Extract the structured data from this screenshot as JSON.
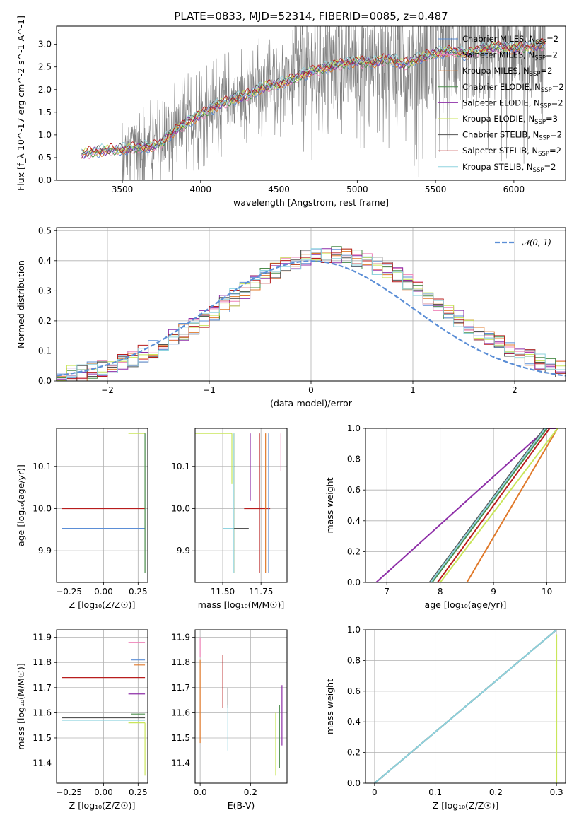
{
  "figure": {
    "title": "PLATE=0833, MJD=52314, FIBERID=0085, z=0.487"
  },
  "models": [
    {
      "name": "Chabrier MILES",
      "nssp": "2",
      "color": "#5b8ed6"
    },
    {
      "name": "Salpeter MILES",
      "nssp": "2",
      "color": "#ee82b8"
    },
    {
      "name": "Kroupa MILES",
      "nssp": "2",
      "color": "#e0792a"
    },
    {
      "name": "Chabrier ELODIE",
      "nssp": "2",
      "color": "#4a8c4a"
    },
    {
      "name": "Salpeter ELODIE",
      "nssp": "2",
      "color": "#8e2fa8"
    },
    {
      "name": "Kroupa ELODIE",
      "nssp": "3",
      "color": "#c9e65a"
    },
    {
      "name": "Chabrier STELIB",
      "nssp": "2",
      "color": "#555555"
    },
    {
      "name": "Salpeter STELIB",
      "nssp": "2",
      "color": "#b81d1d"
    },
    {
      "name": "Kroupa STELIB",
      "nssp": "2",
      "color": "#8fd3df"
    }
  ],
  "legend_nssp_prefix": "N",
  "legend_nssp_sub": "SSP",
  "chart_data": [
    {
      "id": "spectrum",
      "type": "line",
      "title": "",
      "xlabel": "wavelength [Angstrom, rest frame]",
      "ylabel": "Flux [f_λ 10^-17 erg cm^-2 s^-1 A^-1]",
      "xlim": [
        3080,
        6330
      ],
      "ylim": [
        0,
        3.4
      ],
      "xticks": [
        3500,
        4000,
        4500,
        5000,
        5500,
        6000
      ],
      "yticks": [
        0.0,
        0.5,
        1.0,
        1.5,
        2.0,
        2.5,
        3.0
      ],
      "grid": false,
      "legend_position": "upper right",
      "data_color": "#808080",
      "data_range": [
        3240,
        6200
      ],
      "model_continuum": {
        "x": [
          3240,
          3300,
          3400,
          3500,
          3600,
          3700,
          3760,
          3800,
          3900,
          4000,
          4100,
          4200,
          4300,
          4400,
          4500,
          4600,
          4700,
          4800,
          4900,
          5000,
          5100,
          5200,
          5300,
          5400,
          5500,
          5600,
          5700,
          5800,
          5900,
          6000,
          6100,
          6200
        ],
        "y": [
          0.58,
          0.62,
          0.66,
          0.68,
          0.72,
          0.75,
          0.85,
          1.0,
          1.25,
          1.45,
          1.65,
          1.78,
          1.88,
          2.05,
          2.12,
          2.25,
          2.4,
          2.48,
          2.58,
          2.62,
          2.6,
          2.68,
          2.55,
          2.7,
          2.8,
          2.85,
          2.78,
          2.9,
          2.95,
          2.9,
          2.95,
          3.0
        ]
      }
    },
    {
      "id": "residuals",
      "type": "histogram",
      "xlabel": "(data-model)/error",
      "ylabel": "Normed distribution",
      "xlim": [
        -2.5,
        2.5
      ],
      "ylim": [
        0,
        0.51
      ],
      "xticks": [
        -2,
        -1,
        0,
        1,
        2
      ],
      "yticks": [
        0.0,
        0.1,
        0.2,
        0.3,
        0.4,
        0.5
      ],
      "grid": true,
      "legend_position": "upper right",
      "reference_curve": {
        "name": "𝒩(0, 1)",
        "type": "normal",
        "mean": 0,
        "sigma": 1,
        "color": "#5b8ed6"
      },
      "bin_width": 0.1
    },
    {
      "id": "age-vs-Z",
      "type": "scatter",
      "xlabel": "Z [log₁₀(Z/Z☉)]",
      "ylabel": "age  [log₁₀(age/yr)]",
      "xlim": [
        -0.34,
        0.32
      ],
      "ylim": [
        9.825,
        10.19
      ],
      "xticks": [
        -0.25,
        0.0,
        0.25
      ],
      "xtick_labels": [
        "−0.25",
        "0.00",
        "0.25"
      ],
      "yticks": [
        9.9,
        10.0,
        10.1
      ],
      "grid": true,
      "points": [
        {
          "model": 7,
          "x": 0.3,
          "y": 10.0,
          "xerr": [
            0.6,
            0.0
          ]
        },
        {
          "model": 8,
          "x": 0.3,
          "y": 9.953,
          "xerr": [
            0.6,
            0.0
          ]
        },
        {
          "model": 0,
          "x": 0.3,
          "y": 9.953,
          "xerr": [
            0.6,
            0.0
          ]
        },
        {
          "model": 5,
          "x": 0.3,
          "y": 10.178,
          "xerr": [
            0.12,
            0.0
          ]
        },
        {
          "model": 3,
          "x": 0.3,
          "y": 10.178,
          "yerr": [
            0.33,
            0.0
          ]
        }
      ]
    },
    {
      "id": "age-vs-mass",
      "type": "scatter",
      "xlabel": "mass [log₁₀(M/M☉)]",
      "ylabel": "",
      "xlim": [
        11.32,
        11.92
      ],
      "ylim": [
        9.825,
        10.19
      ],
      "xticks": [
        11.5,
        11.75
      ],
      "xtick_labels": [
        "11.50",
        "11.75"
      ],
      "yticks": [
        9.9,
        10.0,
        10.1
      ],
      "grid": true,
      "points": [
        {
          "model": 8,
          "x": 11.57,
          "y": 9.953,
          "xerr": [
            0.07,
            0.07
          ]
        },
        {
          "model": 6,
          "x": 11.62,
          "y": 9.953,
          "xerr": [
            0.05,
            0.05
          ]
        },
        {
          "model": 7,
          "x": 11.74,
          "y": 10.0,
          "xerr": [
            0.1,
            0.07
          ]
        },
        {
          "model": 0,
          "x": 11.8,
          "y": 10.178,
          "yerr": [
            0.33,
            0.0
          ]
        },
        {
          "model": 2,
          "x": 11.78,
          "y": 10.178,
          "yerr": [
            0.33,
            0.0
          ]
        },
        {
          "model": 7,
          "x": 11.74,
          "y": 10.178,
          "yerr": [
            0.33,
            0.0
          ]
        },
        {
          "model": 3,
          "x": 11.58,
          "y": 10.178,
          "yerr": [
            0.33,
            0.0
          ]
        },
        {
          "model": 8,
          "x": 11.57,
          "y": 10.178,
          "yerr": [
            0.33,
            0.0
          ]
        },
        {
          "model": 5,
          "x": 11.56,
          "y": 10.178,
          "xerr": [
            0.24,
            0.0
          ],
          "yerr": [
            0.12,
            0.0
          ]
        },
        {
          "model": 4,
          "x": 11.68,
          "y": 10.178,
          "yerr": [
            0.16,
            0.0
          ]
        },
        {
          "model": 1,
          "x": 11.88,
          "y": 10.178,
          "yerr": [
            0.09,
            0.0
          ]
        }
      ]
    },
    {
      "id": "cum-age",
      "type": "line",
      "xlabel": "age  [log₁₀(age/yr)]",
      "ylabel": "mass weight",
      "xlim": [
        6.6,
        10.35
      ],
      "ylim": [
        0,
        1.0
      ],
      "xticks": [
        7,
        8,
        9,
        10
      ],
      "yticks": [
        0.0,
        0.2,
        0.4,
        0.6,
        0.8,
        1.0
      ],
      "grid": true,
      "series": [
        {
          "model": 4,
          "x": [
            6.8,
            10.0,
            10.2
          ],
          "y": [
            0.0,
            1.0,
            1.0
          ]
        },
        {
          "model": 2,
          "x": [
            8.5,
            10.2
          ],
          "y": [
            0.0,
            1.0
          ]
        },
        {
          "model": 5,
          "x": [
            8.0,
            10.2
          ],
          "y": [
            0.0,
            1.0
          ]
        },
        {
          "model": 3,
          "x": [
            7.85,
            10.0
          ],
          "y": [
            0.0,
            1.0
          ]
        },
        {
          "model": 6,
          "x": [
            7.8,
            9.95
          ],
          "y": [
            0.0,
            1.0
          ]
        },
        {
          "model": 8,
          "x": [
            7.82,
            9.97
          ],
          "y": [
            0.0,
            1.0
          ]
        },
        {
          "model": 7,
          "x": [
            7.95,
            10.05
          ],
          "y": [
            0.0,
            1.0
          ]
        }
      ]
    },
    {
      "id": "mass-vs-Z",
      "type": "scatter",
      "xlabel": "Z [log₁₀(Z/Z☉)]",
      "ylabel": "mass [log₁₀(M/M☉)]",
      "xlim": [
        -0.34,
        0.32
      ],
      "ylim": [
        11.32,
        11.93
      ],
      "xticks": [
        -0.25,
        0.0,
        0.25
      ],
      "xtick_labels": [
        "−0.25",
        "0.00",
        "0.25"
      ],
      "yticks": [
        11.4,
        11.5,
        11.6,
        11.7,
        11.8,
        11.9
      ],
      "grid": true,
      "points": [
        {
          "model": 7,
          "x": 0.3,
          "y": 11.74,
          "xerr": [
            0.6,
            0.0
          ]
        },
        {
          "model": 6,
          "x": 0.3,
          "y": 11.58,
          "xerr": [
            0.6,
            0.0
          ]
        },
        {
          "model": 8,
          "x": 0.3,
          "y": 11.57,
          "xerr": [
            0.6,
            0.0
          ]
        },
        {
          "model": 1,
          "x": 0.3,
          "y": 11.88,
          "xerr": [
            0.12,
            0.0
          ]
        },
        {
          "model": 0,
          "x": 0.3,
          "y": 11.81,
          "xerr": [
            0.1,
            0.0
          ]
        },
        {
          "model": 2,
          "x": 0.3,
          "y": 11.79,
          "xerr": [
            0.08,
            0.0
          ]
        },
        {
          "model": 4,
          "x": 0.3,
          "y": 11.675,
          "xerr": [
            0.12,
            0.0
          ]
        },
        {
          "model": 3,
          "x": 0.3,
          "y": 11.595,
          "xerr": [
            0.1,
            0.0
          ]
        },
        {
          "model": 5,
          "x": 0.3,
          "y": 11.56,
          "xerr": [
            0.12,
            0.0
          ],
          "yerr": [
            0.21,
            0.0
          ]
        }
      ]
    },
    {
      "id": "mass-vs-ebv",
      "type": "scatter",
      "xlabel": "E(B-V)",
      "ylabel": "",
      "xlim": [
        -0.02,
        0.345
      ],
      "ylim": [
        11.32,
        11.93
      ],
      "xticks": [
        0.0,
        0.2
      ],
      "xtick_labels": [
        "0.0",
        "0.2"
      ],
      "yticks": [
        11.4,
        11.5,
        11.6,
        11.7,
        11.8,
        11.9
      ],
      "grid": true,
      "points": [
        {
          "model": 1,
          "x": 0.0,
          "y": 11.82,
          "yerr": [
            0.0,
            0.08
          ]
        },
        {
          "model": 2,
          "x": 0.0,
          "y": 11.48,
          "yerr": [
            0.0,
            0.33
          ]
        },
        {
          "model": 7,
          "x": 0.09,
          "y": 11.62,
          "yerr": [
            0.0,
            0.21
          ]
        },
        {
          "model": 6,
          "x": 0.11,
          "y": 11.62,
          "yerr": [
            0.0,
            0.08
          ]
        },
        {
          "model": 8,
          "x": 0.11,
          "y": 11.45,
          "yerr": [
            0.0,
            0.18
          ]
        },
        {
          "model": 5,
          "x": 0.3,
          "y": 11.35,
          "yerr": [
            0.0,
            0.25
          ]
        },
        {
          "model": 3,
          "x": 0.315,
          "y": 11.38,
          "yerr": [
            0.0,
            0.25
          ]
        },
        {
          "model": 4,
          "x": 0.325,
          "y": 11.47,
          "yerr": [
            0.0,
            0.24
          ]
        }
      ]
    },
    {
      "id": "cum-Z",
      "type": "line",
      "xlabel": "Z [log₁₀(Z/Z☉)]",
      "ylabel": "mass weight",
      "xlim": [
        -0.015,
        0.315
      ],
      "ylim": [
        0,
        1.0
      ],
      "xticks": [
        0.0,
        0.1,
        0.2,
        0.3
      ],
      "yticks": [
        0.0,
        0.2,
        0.4,
        0.6,
        0.8,
        1.0
      ],
      "grid": true,
      "series": [
        {
          "model": 0,
          "x": [
            0.0,
            0.3
          ],
          "y": [
            0.0,
            1.0
          ]
        },
        {
          "model": 3,
          "x": [
            0.0,
            0.3
          ],
          "y": [
            0.0,
            1.0
          ]
        },
        {
          "model": 6,
          "x": [
            0.0,
            0.3
          ],
          "y": [
            0.0,
            1.0
          ]
        },
        {
          "model": 8,
          "x": [
            0.0,
            0.3
          ],
          "y": [
            0.0,
            1.0
          ]
        },
        {
          "model": 5,
          "x": [
            0.3,
            0.3
          ],
          "y": [
            0.0,
            0.97
          ]
        }
      ]
    }
  ]
}
